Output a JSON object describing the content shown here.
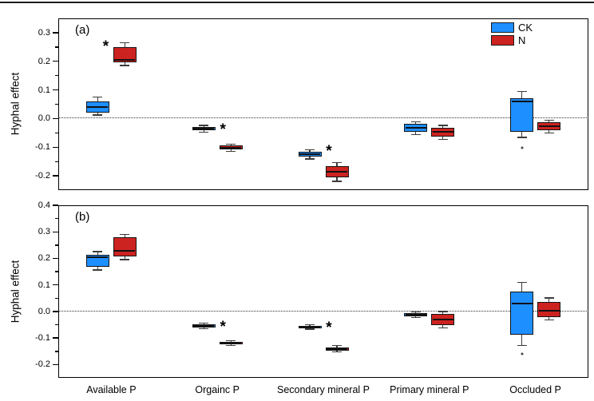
{
  "chart_data": {
    "type": "box",
    "categories": [
      "Available P",
      "Orgainc P",
      "Secondary mineral P",
      "Primary mineral P",
      "Occluded P"
    ],
    "legend": [
      {
        "name": "CK",
        "color": "#1E8FFF"
      },
      {
        "name": "N",
        "color": "#CD2320"
      }
    ],
    "significance_marker": "*",
    "panels": [
      {
        "label": "(a)",
        "ylabel": "Hyphal effect",
        "ylim": [
          -0.25,
          0.35
        ],
        "yticks": [
          {
            "v": 0.3,
            "label": "0.3"
          },
          {
            "v": 0.2,
            "label": "0.2"
          },
          {
            "v": 0.1,
            "label": "0.1"
          },
          {
            "v": 0.0,
            "label": "0.0"
          },
          {
            "v": -0.1,
            "label": "-0.1"
          },
          {
            "v": -0.2,
            "label": "-0.2"
          }
        ],
        "zero_line": true,
        "groups": [
          {
            "category": "Available P",
            "boxes": {
              "CK": {
                "lo": 0.012,
                "q1": 0.022,
                "med": 0.04,
                "q3": 0.06,
                "hi": 0.075
              },
              "N": {
                "lo": 0.185,
                "q1": 0.196,
                "med": 0.206,
                "q3": 0.25,
                "hi": 0.265
              }
            },
            "sig": {
              "series": "N",
              "side": "left",
              "at": 0.252
            }
          },
          {
            "category": "Orgainc P",
            "boxes": {
              "CK": {
                "lo": -0.047,
                "q1": -0.042,
                "med": -0.035,
                "q3": -0.029,
                "hi": -0.024
              },
              "N": {
                "lo": -0.114,
                "q1": -0.108,
                "med": -0.101,
                "q3": -0.095,
                "hi": -0.089
              }
            },
            "sig": {
              "series": "CK",
              "side": "right",
              "at": -0.037
            }
          },
          {
            "category": "Secondary mineral P",
            "boxes": {
              "CK": {
                "lo": -0.141,
                "q1": -0.133,
                "med": -0.124,
                "q3": -0.115,
                "hi": -0.109
              },
              "N": {
                "lo": -0.219,
                "q1": -0.206,
                "med": -0.186,
                "q3": -0.166,
                "hi": -0.154
              }
            },
            "sig": {
              "series": "CK",
              "side": "right",
              "at": -0.112
            }
          },
          {
            "category": "Primary mineral P",
            "boxes": {
              "CK": {
                "lo": -0.056,
                "q1": -0.047,
                "med": -0.031,
                "q3": -0.018,
                "hi": -0.011
              },
              "N": {
                "lo": -0.072,
                "q1": -0.063,
                "med": -0.045,
                "q3": -0.032,
                "hi": -0.024
              }
            }
          },
          {
            "category": "Occluded P",
            "boxes": {
              "CK": {
                "lo": -0.066,
                "q1": -0.046,
                "med": 0.059,
                "q3": 0.07,
                "hi": 0.094,
                "outlier": -0.103
              },
              "N": {
                "lo": -0.051,
                "q1": -0.041,
                "med": -0.028,
                "q3": -0.013,
                "hi": -0.006
              }
            }
          }
        ]
      },
      {
        "label": "(b)",
        "ylabel": "Hyphal effect",
        "ylim": [
          -0.25,
          0.4
        ],
        "yticks": [
          {
            "v": 0.4,
            "label": "0.4"
          },
          {
            "v": 0.3,
            "label": "0.3"
          },
          {
            "v": 0.2,
            "label": "0.2"
          },
          {
            "v": 0.1,
            "label": "0.1"
          },
          {
            "v": 0.0,
            "label": "0.0"
          },
          {
            "v": -0.1,
            "label": "-0.1"
          },
          {
            "v": -0.2,
            "label": "-0.2"
          }
        ],
        "zero_line": true,
        "groups": [
          {
            "category": "Available P",
            "boxes": {
              "CK": {
                "lo": 0.156,
                "q1": 0.169,
                "med": 0.203,
                "q3": 0.212,
                "hi": 0.225
              },
              "N": {
                "lo": 0.195,
                "q1": 0.207,
                "med": 0.228,
                "q3": 0.279,
                "hi": 0.291
              }
            }
          },
          {
            "category": "Orgainc P",
            "boxes": {
              "CK": {
                "lo": -0.065,
                "q1": -0.06,
                "med": -0.055,
                "q3": -0.049,
                "hi": -0.044
              },
              "N": {
                "lo": -0.128,
                "q1": -0.124,
                "med": -0.12,
                "q3": -0.115,
                "hi": -0.111
              }
            },
            "sig": {
              "series": "CK",
              "side": "right",
              "at": -0.057
            }
          },
          {
            "category": "Secondary mineral P",
            "boxes": {
              "CK": {
                "lo": -0.067,
                "q1": -0.063,
                "med": -0.059,
                "q3": -0.054,
                "hi": -0.05
              },
              "N": {
                "lo": -0.152,
                "q1": -0.147,
                "med": -0.141,
                "q3": -0.135,
                "hi": -0.128
              }
            },
            "sig": {
              "series": "CK",
              "side": "right",
              "at": -0.061
            }
          },
          {
            "category": "Primary mineral P",
            "boxes": {
              "CK": {
                "lo": -0.023,
                "q1": -0.018,
                "med": -0.012,
                "q3": -0.005,
                "hi": -0.001
              },
              "N": {
                "lo": -0.062,
                "q1": -0.05,
                "med": -0.03,
                "q3": -0.01,
                "hi": 0.0
              }
            }
          },
          {
            "category": "Occluded P",
            "boxes": {
              "CK": {
                "lo": -0.129,
                "q1": -0.088,
                "med": 0.029,
                "q3": 0.074,
                "hi": 0.109,
                "outlier": -0.159
              },
              "N": {
                "lo": -0.031,
                "q1": -0.021,
                "med": 0.004,
                "q3": 0.035,
                "hi": 0.051
              }
            }
          }
        ]
      }
    ]
  }
}
